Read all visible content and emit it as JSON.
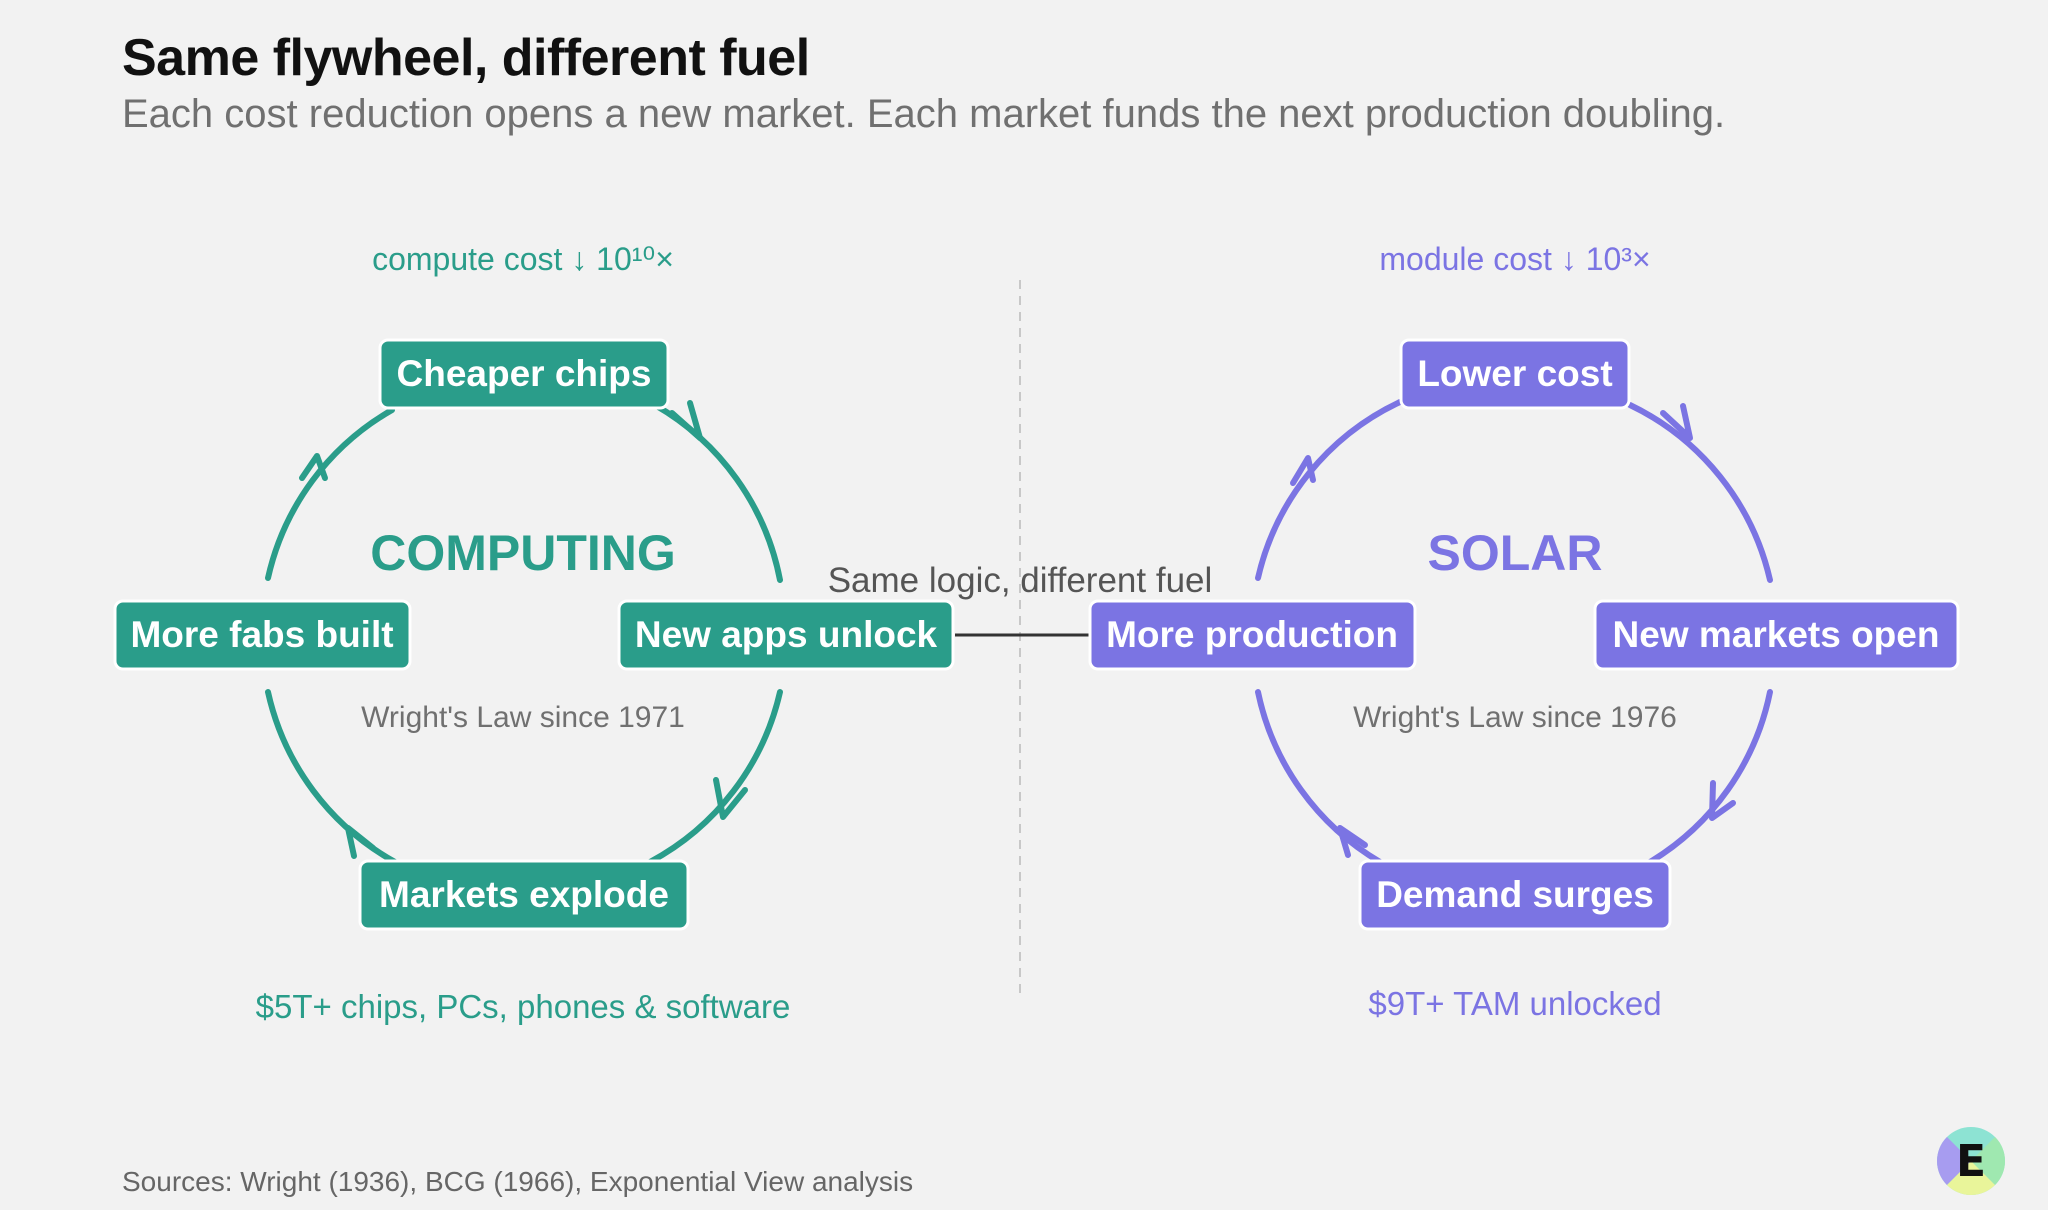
{
  "header": {
    "title": "Same flywheel, different fuel",
    "subtitle": "Each cost reduction opens a new market. Each market funds the next production doubling."
  },
  "connector_label": "Same logic, different fuel",
  "colors": {
    "background": "#f2f2f2",
    "computing": "#2a9d8a",
    "solar": "#7b74e3",
    "divider": "#c8c8c8",
    "connector": "#333333",
    "muted_text": "#707070"
  },
  "wheels": [
    {
      "id": "computing",
      "name": "COMPUTING",
      "top_label": "compute cost ↓ 10¹⁰×",
      "inner_label": "Wright's Law since 1971",
      "bottom_label": "$5T+ chips, PCs, phones & software",
      "nodes": {
        "top": "Cheaper chips",
        "right": "New apps unlock",
        "bottom": "Markets explode",
        "left": "More fabs built"
      }
    },
    {
      "id": "solar",
      "name": "SOLAR",
      "top_label": "module cost ↓ 10³×",
      "inner_label": "Wright's Law since 1976",
      "bottom_label": "$9T+ TAM unlocked",
      "nodes": {
        "top": "Lower cost",
        "right": "New markets open",
        "bottom": "Demand surges",
        "left": "More production"
      }
    }
  ],
  "footer": {
    "sources": "Sources: Wright (1936), BCG (1966), Exponential View analysis"
  },
  "logo": {
    "letter": "E",
    "icon": "exponential-view-logo-icon"
  }
}
